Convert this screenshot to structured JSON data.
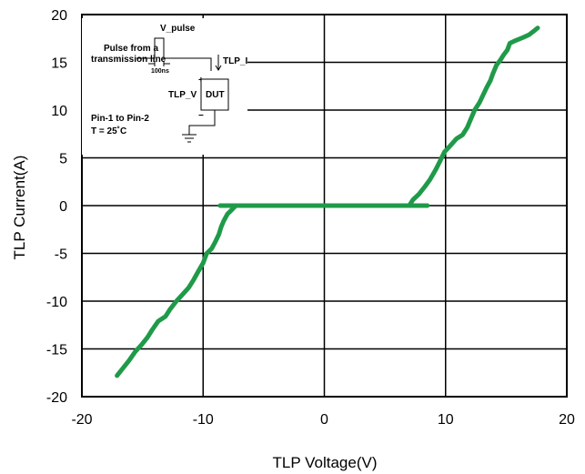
{
  "chart_data": {
    "type": "line",
    "title": "",
    "xlabel": "TLP Voltage(V)",
    "ylabel": "TLP Current(A)",
    "xlim": [
      -20,
      20
    ],
    "ylim": [
      -20,
      20
    ],
    "x_ticks": [
      -20,
      -10,
      0,
      10,
      20
    ],
    "y_ticks": [
      -20,
      -15,
      -10,
      -5,
      0,
      5,
      10,
      15,
      20
    ],
    "x_tick_labels": [
      "-20",
      "-10",
      "0",
      "10",
      "20"
    ],
    "y_tick_labels": [
      "-20",
      "-15",
      "-10",
      "-5",
      "0",
      "5",
      "10",
      "15",
      "20"
    ],
    "grid": true,
    "series_color": "#1f9a49",
    "series": [
      {
        "name": "",
        "points": [
          [
            -17.1,
            -17.8
          ],
          [
            -16.6,
            -17.0
          ],
          [
            -16.1,
            -16.2
          ],
          [
            -15.6,
            -15.3
          ],
          [
            -15.1,
            -14.6
          ],
          [
            -14.6,
            -13.8
          ],
          [
            -14.2,
            -13.0
          ],
          [
            -13.7,
            -12.1
          ],
          [
            -13.1,
            -11.6
          ],
          [
            -12.7,
            -10.8
          ],
          [
            -12.2,
            -10.0
          ],
          [
            -11.7,
            -9.3
          ],
          [
            -11.2,
            -8.6
          ],
          [
            -10.8,
            -7.8
          ],
          [
            -10.4,
            -6.9
          ],
          [
            -10.0,
            -6.0
          ],
          [
            -9.7,
            -5.0
          ],
          [
            -9.3,
            -4.5
          ],
          [
            -9.0,
            -3.8
          ],
          [
            -8.7,
            -3.0
          ],
          [
            -8.5,
            -2.2
          ],
          [
            -8.3,
            -1.6
          ],
          [
            -8.0,
            -0.9
          ],
          [
            -7.6,
            -0.4
          ],
          [
            -7.3,
            0.0
          ],
          [
            -8.6,
            0.0
          ],
          [
            -4.0,
            0.0
          ],
          [
            0.0,
            0.0
          ],
          [
            4.0,
            0.0
          ],
          [
            8.5,
            0.0
          ],
          [
            7.0,
            0.0
          ],
          [
            7.3,
            0.6
          ],
          [
            7.8,
            1.2
          ],
          [
            8.3,
            2.0
          ],
          [
            8.7,
            2.7
          ],
          [
            9.2,
            3.8
          ],
          [
            9.6,
            4.8
          ],
          [
            9.9,
            5.6
          ],
          [
            10.4,
            6.3
          ],
          [
            10.9,
            7.0
          ],
          [
            11.4,
            7.4
          ],
          [
            11.8,
            8.2
          ],
          [
            12.1,
            9.1
          ],
          [
            12.4,
            10.0
          ],
          [
            12.8,
            10.8
          ],
          [
            13.1,
            11.6
          ],
          [
            13.4,
            12.4
          ],
          [
            13.7,
            13.1
          ],
          [
            13.9,
            13.8
          ],
          [
            14.2,
            14.7
          ],
          [
            14.5,
            15.2
          ],
          [
            14.8,
            15.8
          ],
          [
            15.1,
            16.3
          ],
          [
            15.3,
            17.0
          ],
          [
            15.8,
            17.3
          ],
          [
            16.4,
            17.6
          ],
          [
            16.9,
            17.9
          ],
          [
            17.3,
            18.3
          ],
          [
            17.6,
            18.6
          ]
        ]
      }
    ]
  },
  "inset": {
    "v_pulse": "V_pulse",
    "pulse_line1": "Pulse from a",
    "pulse_line2": "transmission line",
    "width_label": "100ns",
    "tlp_i": "TLP_I",
    "tlp_v": "TLP_V",
    "plus": "+",
    "minus": "−",
    "dut": "DUT",
    "pins": "Pin-1 to Pin-2",
    "temp": "T = 25˚C"
  }
}
